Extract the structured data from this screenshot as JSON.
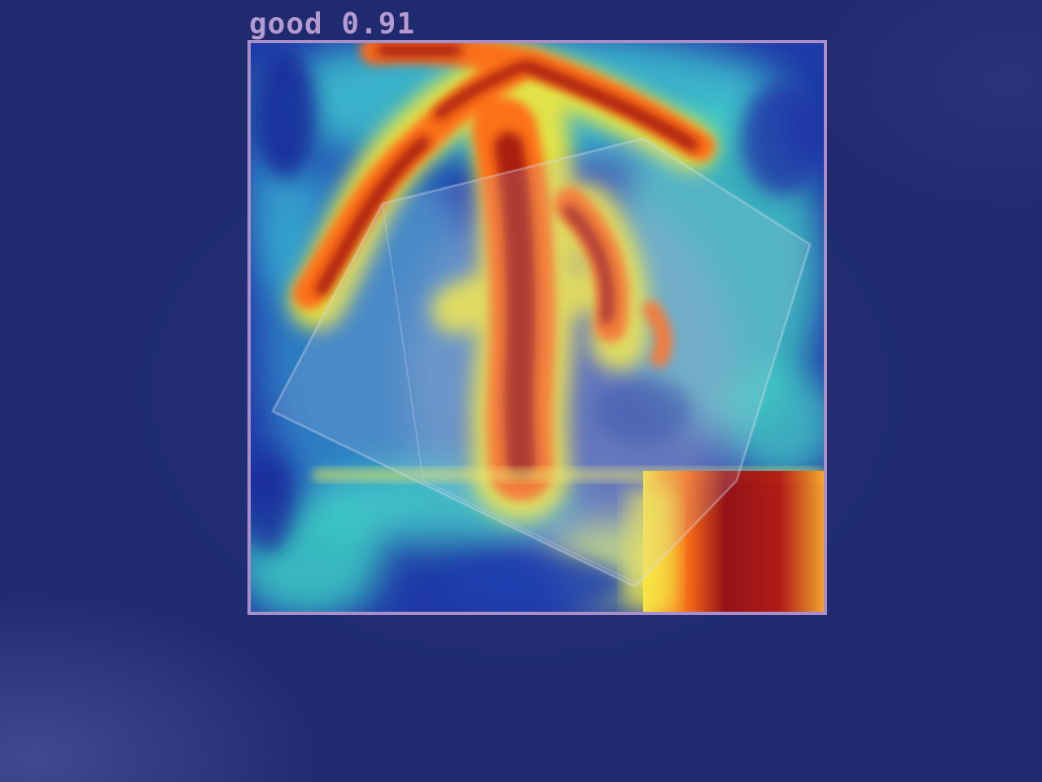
{
  "detection": {
    "label": "good",
    "score": "0.91",
    "box_color": "#a98ec8"
  },
  "colormap": {
    "name": "jet",
    "colors": [
      "#1a2f9e",
      "#2e6de0",
      "#3fd4c8",
      "#ffe33a",
      "#ff4a10",
      "#8e0f12"
    ]
  }
}
